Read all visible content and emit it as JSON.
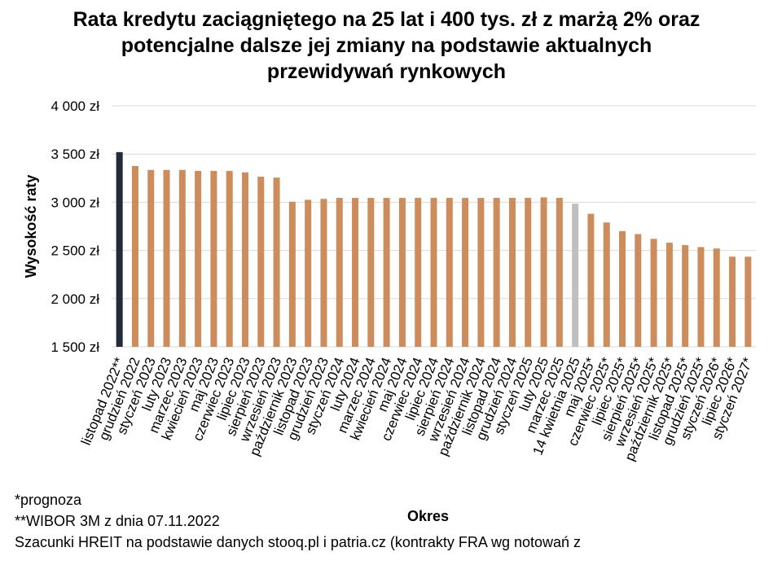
{
  "title_lines": [
    "Rata kredytu zaciągniętego na 25 lat i 400 tys. zł z marżą 2% oraz",
    "potencjalne dalsze jej zmiany na podstawie aktualnych",
    "przewidywań rynkowych"
  ],
  "footnotes": {
    "forecast": "*prognoza",
    "wibor": "**WIBOR 3M z  dnia 07.11.2022",
    "source": "Szacunki HREIT na podstawie danych stooq.pl i patria.cz (kontrakty FRA wg notowań z"
  },
  "chart_data": {
    "type": "bar",
    "title": "Rata kredytu zaciągniętego na 25 lat i 400 tys. zł z marżą 2% oraz potencjalne dalsze jej zmiany na podstawie aktualnych przewidywań rynkowych",
    "xlabel": "Okres",
    "ylabel": "Wysokość raty",
    "ylim": [
      1500,
      4000
    ],
    "yticks": [
      1500,
      2000,
      2500,
      3000,
      3500,
      4000
    ],
    "ytick_labels": [
      "1 500 zł",
      "2 000 zł",
      "2 500 zł",
      "3 000 zł",
      "3 500 zł",
      "4 000 zł"
    ],
    "grid": true,
    "colors": {
      "first": "#222a3b",
      "default": "#cc8c5c",
      "current": "#bfbfc1",
      "grid": "#d9d9d9"
    },
    "categories": [
      "listopad 2022**",
      "grudzień 2022",
      "styczeń 2023",
      "luty 2023",
      "marzec 2023",
      "kwiecień 2023",
      "maj 2023",
      "czerwiec 2023",
      "lipiec 2023",
      "sierpień 2023",
      "wrzesień 2023",
      "październik 2023",
      "listopad 2023",
      "grudzień 2023",
      "styczeń 2024",
      "luty 2024",
      "marzec 2024",
      "kwiecień 2024",
      "maj 2024",
      "czerwiec 2024",
      "lipiec 2024",
      "sierpień 2024",
      "wrzesień 2024",
      "październik 2024",
      "listopad 2024",
      "grudzień 2024",
      "styczeń 2025",
      "luty 2025",
      "marzec 2025",
      "14 kwietnia 2025",
      "maj 2025*",
      "czerwiec 2025*",
      "lipiec 2025*",
      "sierpień 2025*",
      "wrzesień 2025*",
      "październik 2025*",
      "listopad 2025*",
      "grudzień 2025*",
      "styczeń 2026*",
      "lipiec 2026*",
      "styczeń 2027*"
    ],
    "values": [
      3520,
      3375,
      3335,
      3335,
      3335,
      3325,
      3325,
      3325,
      3310,
      3265,
      3255,
      3005,
      3025,
      3035,
      3045,
      3045,
      3045,
      3045,
      3045,
      3045,
      3045,
      3045,
      3045,
      3045,
      3045,
      3045,
      3045,
      3050,
      3045,
      2985,
      2880,
      2790,
      2700,
      2670,
      2620,
      2580,
      2555,
      2535,
      2520,
      2435,
      2435
    ],
    "bar_color_keys": [
      "first",
      "default",
      "default",
      "default",
      "default",
      "default",
      "default",
      "default",
      "default",
      "default",
      "default",
      "default",
      "default",
      "default",
      "default",
      "default",
      "default",
      "default",
      "default",
      "default",
      "default",
      "default",
      "default",
      "default",
      "default",
      "default",
      "default",
      "default",
      "default",
      "current",
      "default",
      "default",
      "default",
      "default",
      "default",
      "default",
      "default",
      "default",
      "default",
      "default",
      "default"
    ]
  }
}
